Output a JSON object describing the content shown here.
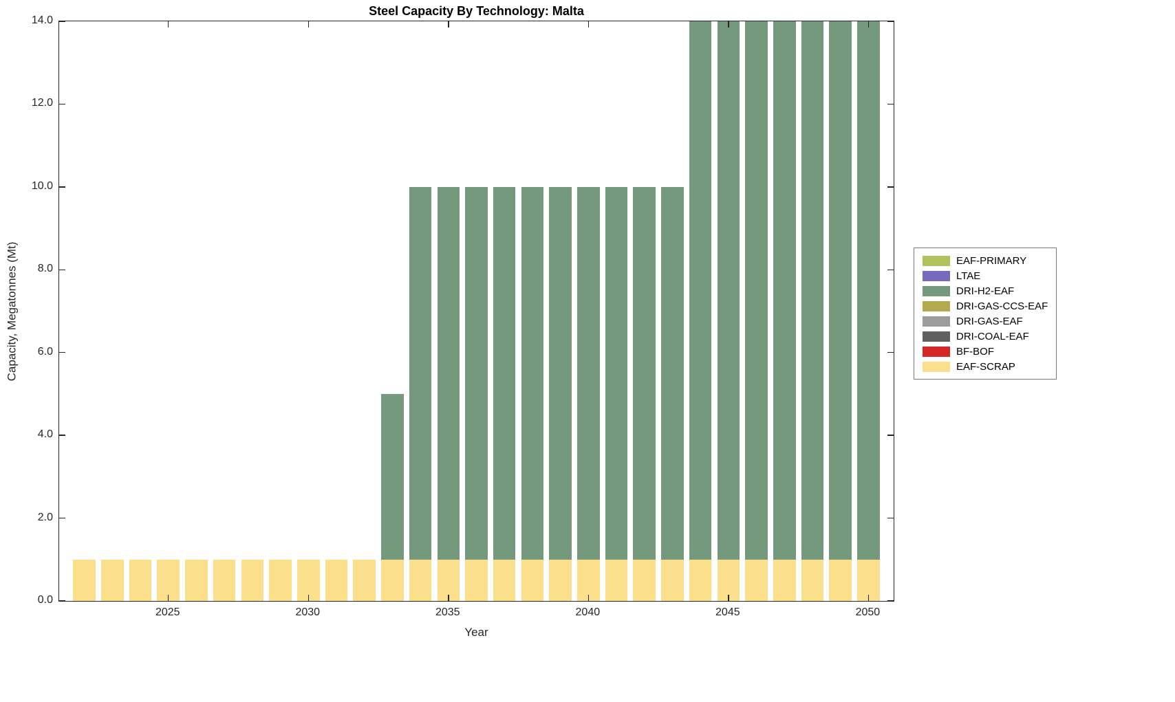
{
  "figure": {
    "title": "Steel Capacity By Technology: Malta"
  },
  "chart_data": {
    "type": "bar",
    "stacked": true,
    "title": "Steel Capacity By Technology: Malta",
    "xlabel": "Year",
    "ylabel": "Capacity, Megatonnes (Mt)",
    "x_range": [
      2021.1,
      2050.9
    ],
    "ylim": [
      0,
      14
    ],
    "bar_width_fraction": 0.8,
    "grid": false,
    "years": [
      2022,
      2023,
      2024,
      2025,
      2026,
      2027,
      2028,
      2029,
      2030,
      2031,
      2032,
      2033,
      2034,
      2035,
      2036,
      2037,
      2038,
      2039,
      2040,
      2041,
      2042,
      2043,
      2044,
      2045,
      2046,
      2047,
      2048,
      2049,
      2050
    ],
    "series": [
      {
        "name": "EAF-SCRAP",
        "color": "#FBDF8B",
        "values": [
          1,
          1,
          1,
          1,
          1,
          1,
          1,
          1,
          1,
          1,
          1,
          1,
          1,
          1,
          1,
          1,
          1,
          1,
          1,
          1,
          1,
          1,
          1,
          1,
          1,
          1,
          1,
          1,
          1
        ]
      },
      {
        "name": "DRI-H2-EAF",
        "color": "#74997C",
        "values": [
          0,
          0,
          0,
          0,
          0,
          0,
          0,
          0,
          0,
          0,
          0,
          4,
          9,
          9,
          9,
          9,
          9,
          9,
          9,
          9,
          9,
          9,
          13,
          13,
          13,
          13,
          13,
          13,
          13
        ]
      }
    ],
    "xticks": [
      {
        "value": 2025,
        "label": "2025"
      },
      {
        "value": 2030,
        "label": "2030"
      },
      {
        "value": 2035,
        "label": "2035"
      },
      {
        "value": 2040,
        "label": "2040"
      },
      {
        "value": 2045,
        "label": "2045"
      },
      {
        "value": 2050,
        "label": "2050"
      }
    ],
    "yticks": [
      {
        "value": 0,
        "label": "0.0"
      },
      {
        "value": 2,
        "label": "2.0"
      },
      {
        "value": 4,
        "label": "4.0"
      },
      {
        "value": 6,
        "label": "6.0"
      },
      {
        "value": 8,
        "label": "8.0"
      },
      {
        "value": 10,
        "label": "10.0"
      },
      {
        "value": 12,
        "label": "12.0"
      },
      {
        "value": 14,
        "label": "14.0"
      }
    ],
    "legend": {
      "position": "right-outside",
      "entries": [
        {
          "label": "EAF-PRIMARY",
          "color": "#B2C25B"
        },
        {
          "label": "LTAE",
          "color": "#7569C0"
        },
        {
          "label": "DRI-H2-EAF",
          "color": "#74997C"
        },
        {
          "label": "DRI-GAS-CCS-EAF",
          "color": "#B3A94F"
        },
        {
          "label": "DRI-GAS-EAF",
          "color": "#9C9C9C"
        },
        {
          "label": "DRI-COAL-EAF",
          "color": "#5F5F5F"
        },
        {
          "label": "BF-BOF",
          "color": "#D62728"
        },
        {
          "label": "EAF-SCRAP",
          "color": "#FBDF8B"
        }
      ]
    }
  }
}
